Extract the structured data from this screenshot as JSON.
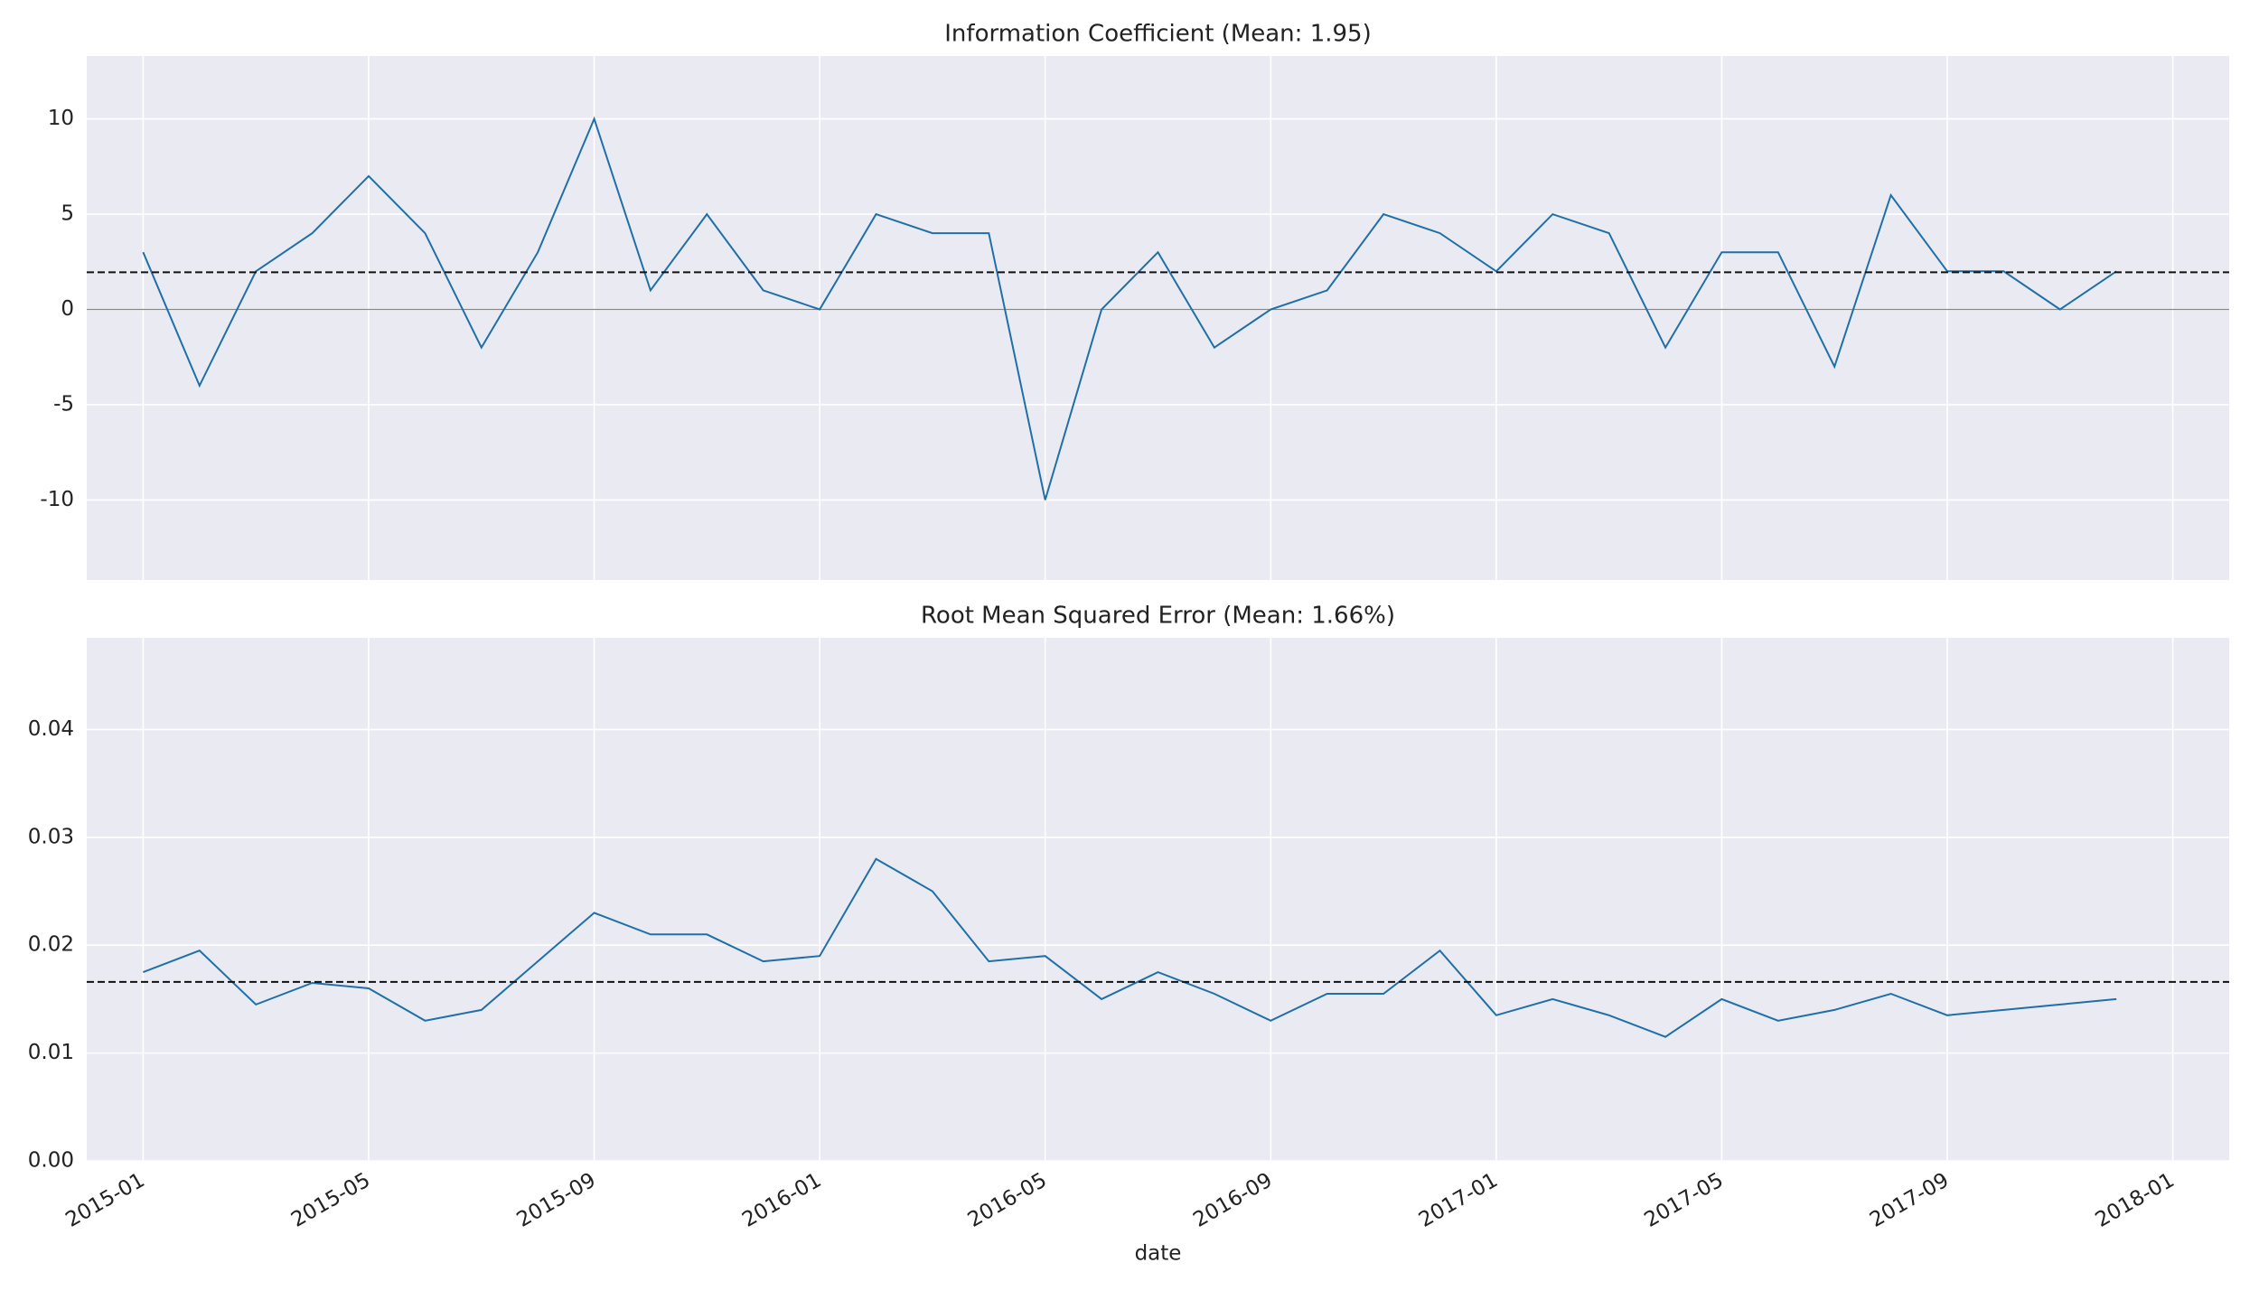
{
  "chart_data": [
    {
      "type": "line",
      "title": "Information Coefficient (Mean: 1.95)",
      "x": [
        "2015-01",
        "2015-02",
        "2015-03",
        "2015-04",
        "2015-05",
        "2015-06",
        "2015-07",
        "2015-08",
        "2015-09",
        "2015-10",
        "2015-11",
        "2015-12",
        "2016-01",
        "2016-02",
        "2016-03",
        "2016-04",
        "2016-05",
        "2016-06",
        "2016-07",
        "2016-08",
        "2016-09",
        "2016-10",
        "2016-11",
        "2016-12",
        "2017-01",
        "2017-02",
        "2017-03",
        "2017-04",
        "2017-05",
        "2017-06",
        "2017-07",
        "2017-08",
        "2017-09",
        "2017-10",
        "2017-11",
        "2017-12"
      ],
      "series": [
        {
          "color": "#1f6fa8",
          "values": [
            3,
            -4,
            2,
            4,
            7,
            4,
            -2,
            3,
            10,
            1,
            5,
            1,
            0,
            5,
            4,
            4,
            -10,
            0,
            3,
            -2,
            0,
            1,
            5,
            4,
            2,
            5,
            4,
            -2,
            3,
            3,
            -3,
            6,
            2,
            2,
            0,
            2
          ]
        }
      ],
      "hline": 1.95,
      "zero_line": 0,
      "xlim": [
        "2014-12",
        "2018-02"
      ],
      "xticks": [
        "2015-01",
        "2015-05",
        "2015-09",
        "2016-01",
        "2016-05",
        "2016-09",
        "2017-01",
        "2017-05",
        "2017-09",
        "2018-01"
      ],
      "ylim": [
        -14.2,
        13.3
      ],
      "yticks": [
        -10,
        -5,
        0,
        5,
        10
      ],
      "grid": true
    },
    {
      "type": "line",
      "title": "Root Mean Squared Error (Mean: 1.66%)",
      "xlabel": "date",
      "x": [
        "2015-01",
        "2015-02",
        "2015-03",
        "2015-04",
        "2015-05",
        "2015-06",
        "2015-07",
        "2015-08",
        "2015-09",
        "2015-10",
        "2015-11",
        "2015-12",
        "2016-01",
        "2016-02",
        "2016-03",
        "2016-04",
        "2016-05",
        "2016-06",
        "2016-07",
        "2016-08",
        "2016-09",
        "2016-10",
        "2016-11",
        "2016-12",
        "2017-01",
        "2017-02",
        "2017-03",
        "2017-04",
        "2017-05",
        "2017-06",
        "2017-07",
        "2017-08",
        "2017-09",
        "2017-10",
        "2017-11",
        "2017-12"
      ],
      "series": [
        {
          "color": "#1f6fa8",
          "values": [
            0.0175,
            0.0195,
            0.0145,
            0.0165,
            0.016,
            0.013,
            0.014,
            0.0185,
            0.023,
            0.021,
            0.021,
            0.0185,
            0.019,
            0.028,
            0.025,
            0.0185,
            0.019,
            0.015,
            0.0175,
            0.0155,
            0.013,
            0.0155,
            0.0155,
            0.0195,
            0.0135,
            0.015,
            0.0135,
            0.0115,
            0.015,
            0.013,
            0.014,
            0.0155,
            0.0135,
            0.014,
            0.0145,
            0.015
          ]
        }
      ],
      "hline": 0.0166,
      "xlim": [
        "2014-12",
        "2018-02"
      ],
      "xticks": [
        "2015-01",
        "2015-05",
        "2015-09",
        "2016-01",
        "2016-05",
        "2016-09",
        "2017-01",
        "2017-05",
        "2017-09",
        "2018-01"
      ],
      "ylim": [
        0,
        0.0485
      ],
      "yticks": [
        {
          "value": 0,
          "label": "0.00"
        },
        {
          "value": 0.01,
          "label": "0.01"
        },
        {
          "value": 0.02,
          "label": "0.02"
        },
        {
          "value": 0.03,
          "label": "0.03"
        },
        {
          "value": 0.04,
          "label": "0.04"
        }
      ],
      "grid": true
    }
  ]
}
